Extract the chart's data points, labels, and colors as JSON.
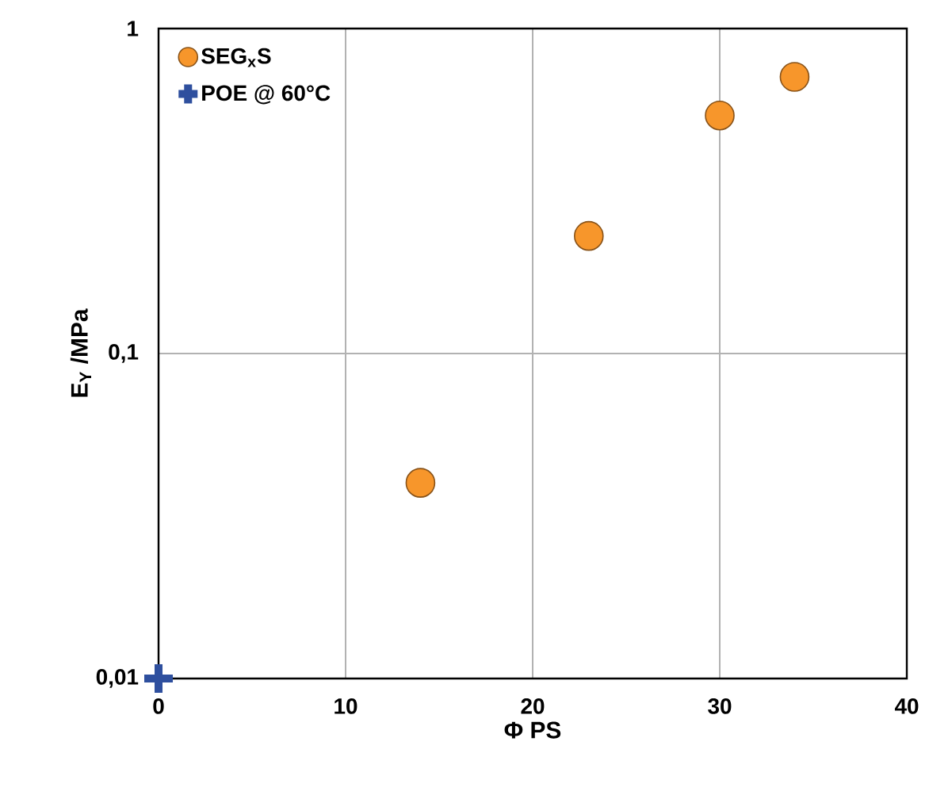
{
  "chart_data": {
    "type": "scatter",
    "xlabel": "Φ PS",
    "ylabel": "E$_{Y}$ /MPa",
    "series": [
      {
        "name": "SEG$_{x}$S",
        "color": "#f7962b",
        "marker": "circle",
        "x": [
          14,
          23,
          30,
          34
        ],
        "values": [
          0.04,
          0.23,
          0.54,
          0.71
        ]
      },
      {
        "name": "POE @ 60°C",
        "color": "#2e4f9e",
        "marker": "cross",
        "x": [
          0
        ],
        "values": [
          0.01
        ]
      }
    ],
    "xlim": [
      0,
      40
    ],
    "xticks": [
      0,
      10,
      20,
      30,
      40
    ],
    "ylim": [
      0.01,
      1
    ],
    "yticks": [
      {
        "value": 0.01,
        "label": "0,01"
      },
      {
        "value": 0.1,
        "label": "0,1"
      },
      {
        "value": 1,
        "label": "1"
      }
    ],
    "log": "y",
    "grid": true,
    "legend": "top left"
  }
}
